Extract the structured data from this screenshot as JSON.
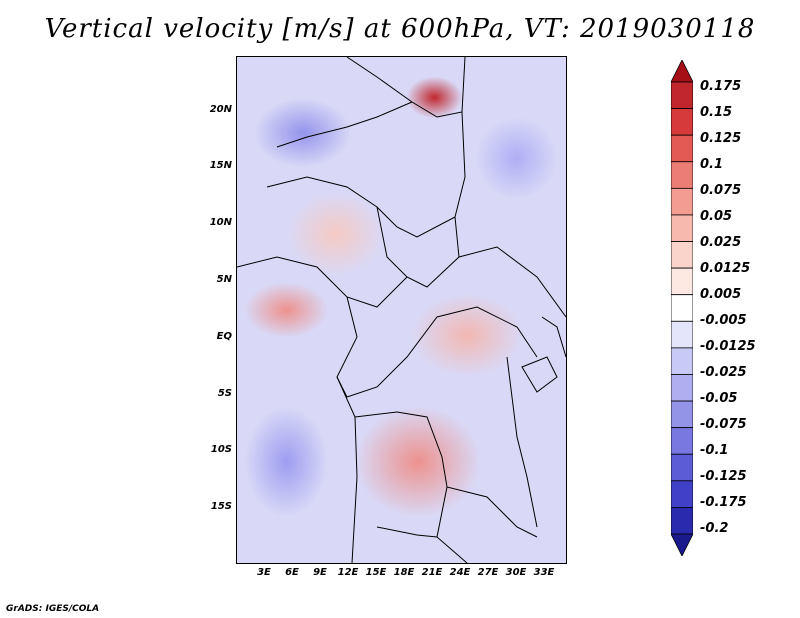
{
  "title": "Vertical velocity [m/s] at 600hPa, VT: 2019030118",
  "latitude_labels": [
    "20N",
    "15N",
    "10N",
    "5N",
    "EQ",
    "5S",
    "10S",
    "15S"
  ],
  "longitude_labels": [
    "3E",
    "6E",
    "9E",
    "12E",
    "15E",
    "18E",
    "21E",
    "24E",
    "27E",
    "30E",
    "33E"
  ],
  "colorbar": {
    "labels": [
      "0.175",
      "0.15",
      "0.125",
      "0.1",
      "0.075",
      "0.05",
      "0.025",
      "0.0125",
      "0.005",
      "-0.005",
      "-0.0125",
      "-0.025",
      "-0.05",
      "-0.075",
      "-0.1",
      "-0.125",
      "-0.175",
      "-0.2"
    ],
    "colors": [
      "#a50f15",
      "#c0272d",
      "#d63a3a",
      "#e35a55",
      "#ec7d75",
      "#f29c92",
      "#f7b9ae",
      "#fad3ca",
      "#fde8e2",
      "#ffffff",
      "#e4e4fa",
      "#c9c9f5",
      "#aeaef0",
      "#9393e8",
      "#7878e0",
      "#5c5cd6",
      "#4040c8",
      "#2a2aaf",
      "#1a1a8c"
    ]
  },
  "credit": "GrADS: IGES/COLA"
}
